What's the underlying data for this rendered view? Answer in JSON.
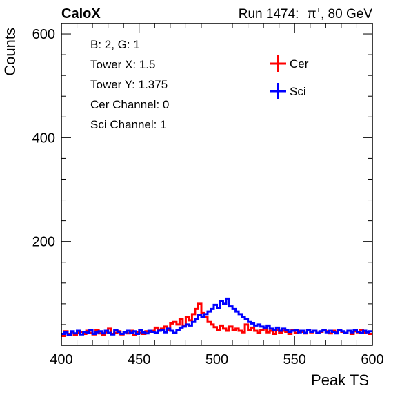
{
  "header": {
    "experiment": "CaloX",
    "run_info": "Run 1474:",
    "particle": "π",
    "charge": "+",
    "energy": ", 80 GeV"
  },
  "info_box": {
    "lines": [
      "B: 2, G: 1",
      "Tower X: 1.5",
      "Tower Y: 1.375",
      "Cer Channel: 0",
      "Sci Channel: 1"
    ]
  },
  "chart_data": {
    "type": "line",
    "xlabel": "Peak TS",
    "ylabel": "Counts",
    "xlim": [
      400,
      600
    ],
    "ylim": [
      0,
      620
    ],
    "x_ticks": [
      400,
      450,
      500,
      550,
      600
    ],
    "y_ticks": [
      200,
      400,
      600
    ],
    "grid": false,
    "legend_position": "top-right",
    "x": [
      400,
      402,
      404,
      406,
      408,
      410,
      412,
      414,
      416,
      418,
      420,
      422,
      424,
      426,
      428,
      430,
      432,
      434,
      436,
      438,
      440,
      442,
      444,
      446,
      448,
      450,
      452,
      454,
      456,
      458,
      460,
      462,
      464,
      466,
      468,
      470,
      472,
      474,
      476,
      478,
      480,
      482,
      484,
      486,
      488,
      490,
      492,
      494,
      496,
      498,
      500,
      502,
      504,
      506,
      508,
      510,
      512,
      514,
      516,
      518,
      520,
      522,
      524,
      526,
      528,
      530,
      532,
      534,
      536,
      538,
      540,
      542,
      544,
      546,
      548,
      550,
      552,
      554,
      556,
      558,
      560,
      562,
      564,
      566,
      568,
      570,
      572,
      574,
      576,
      578,
      580,
      582,
      584,
      586,
      588,
      590,
      592,
      594,
      596,
      598
    ],
    "series": [
      {
        "name": "Cer",
        "color": "#ff0000",
        "values": [
          18,
          27,
          22,
          25,
          20,
          24,
          26,
          22,
          28,
          24,
          21,
          30,
          23,
          20,
          25,
          32,
          22,
          24,
          27,
          21,
          26,
          23,
          28,
          20,
          25,
          24,
          22,
          27,
          26,
          28,
          34,
          30,
          32,
          36,
          30,
          42,
          45,
          40,
          50,
          38,
          55,
          48,
          60,
          70,
          80,
          62,
          55,
          45,
          40,
          35,
          30,
          38,
          32,
          28,
          36,
          30,
          32,
          28,
          25,
          40,
          30,
          34,
          28,
          24,
          30,
          32,
          25,
          28,
          22,
          30,
          24,
          28,
          26,
          22,
          30,
          24,
          28,
          26,
          23,
          30,
          25,
          28,
          24,
          26,
          30,
          27,
          23,
          28,
          25,
          30,
          26,
          24,
          28,
          22,
          27,
          25,
          30,
          24,
          26,
          22
        ]
      },
      {
        "name": "Sci",
        "color": "#0000ff",
        "values": [
          22,
          25,
          20,
          27,
          23,
          28,
          21,
          26,
          24,
          30,
          22,
          25,
          27,
          23,
          28,
          24,
          21,
          30,
          26,
          22,
          25,
          28,
          24,
          27,
          22,
          30,
          25,
          23,
          28,
          26,
          24,
          28,
          30,
          25,
          32,
          28,
          24,
          30,
          34,
          36,
          40,
          38,
          45,
          50,
          58,
          55,
          60,
          65,
          70,
          78,
          72,
          85,
          80,
          90,
          75,
          70,
          65,
          60,
          55,
          50,
          45,
          42,
          38,
          40,
          36,
          34,
          38,
          32,
          30,
          34,
          28,
          32,
          30,
          26,
          28,
          30,
          25,
          28,
          24,
          30,
          26,
          28,
          24,
          27,
          30,
          25,
          28,
          26,
          23,
          30,
          27,
          24,
          28,
          25,
          30,
          26,
          24,
          28,
          25,
          27
        ]
      }
    ]
  }
}
